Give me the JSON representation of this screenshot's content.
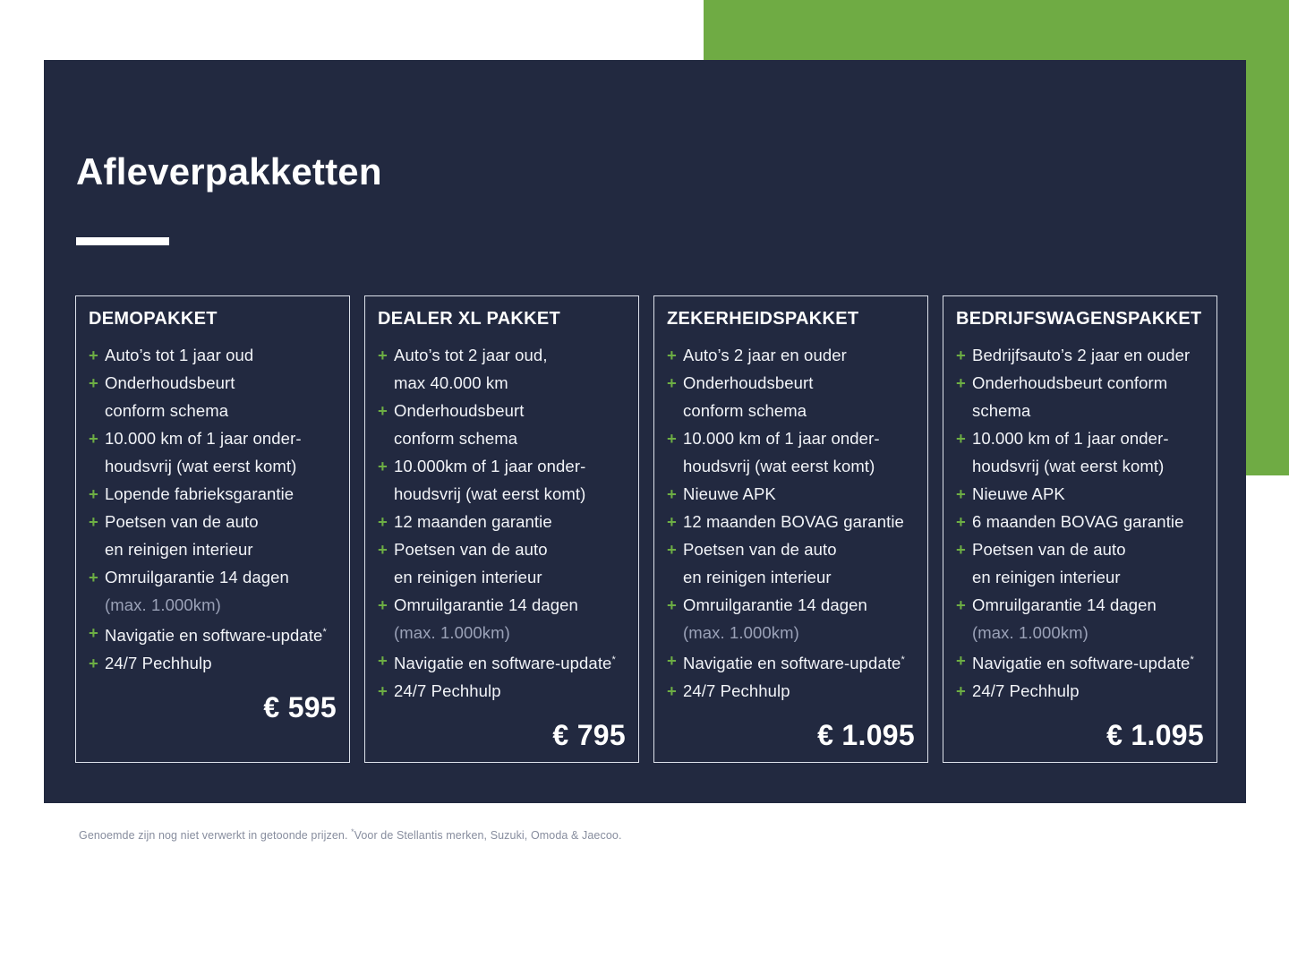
{
  "page": {
    "title": "Afleverpakketten",
    "footnote": {
      "part1": "Genoemde zijn nog niet verwerkt in getoonde prijzen. ",
      "asterisk": "*",
      "part2": "Voor de Stellantis merken, Suzuki, Omoda & Jaecoo."
    },
    "colors": {
      "navy": "#222940",
      "green": "#6FAB44",
      "plus_green": "#6DAE44",
      "text": "#F2F4F8",
      "dim_text": "#9AA1B7",
      "card_border": "#DDE1EA",
      "footnote_gray": "#878D9E"
    }
  },
  "packages": [
    {
      "name": "DEMOPAKKET",
      "price": "€ 595",
      "items": [
        {
          "lines": [
            {
              "text": "Auto’s tot 1 jaar oud"
            }
          ]
        },
        {
          "lines": [
            {
              "text": "Onderhoudsbeurt"
            },
            {
              "text": "conform schema"
            }
          ]
        },
        {
          "lines": [
            {
              "text": "10.000 km of 1 jaar onder-"
            },
            {
              "text": "houdsvrij (wat eerst komt)"
            }
          ]
        },
        {
          "lines": [
            {
              "text": "Lopende fabrieksgarantie"
            }
          ]
        },
        {
          "lines": [
            {
              "text": "Poetsen van de auto"
            },
            {
              "text": "en reinigen interieur"
            }
          ]
        },
        {
          "lines": [
            {
              "text": "Omruilgarantie 14 dagen"
            },
            {
              "text": "(max. 1.000km)",
              "dim": true
            }
          ]
        },
        {
          "lines": [
            {
              "text": "Navigatie en software-update",
              "sup": "*"
            }
          ]
        },
        {
          "lines": [
            {
              "text": "24/7 Pechhulp"
            }
          ]
        }
      ]
    },
    {
      "name": "DEALER XL PAKKET",
      "price": "€ 795",
      "items": [
        {
          "lines": [
            {
              "text": "Auto’s tot 2 jaar oud,"
            },
            {
              "text": "max 40.000 km"
            }
          ]
        },
        {
          "lines": [
            {
              "text": "Onderhoudsbeurt"
            },
            {
              "text": "conform schema"
            }
          ]
        },
        {
          "lines": [
            {
              "text": "10.000km of 1 jaar onder-"
            },
            {
              "text": "houdsvrij (wat eerst komt)"
            }
          ]
        },
        {
          "lines": [
            {
              "text": "12 maanden garantie"
            }
          ]
        },
        {
          "lines": [
            {
              "text": "Poetsen van de auto"
            },
            {
              "text": "en reinigen interieur"
            }
          ]
        },
        {
          "lines": [
            {
              "text": "Omruilgarantie 14 dagen"
            },
            {
              "text": "(max. 1.000km)",
              "dim": true
            }
          ]
        },
        {
          "lines": [
            {
              "text": "Navigatie en software-update",
              "sup": "*"
            }
          ]
        },
        {
          "lines": [
            {
              "text": "24/7 Pechhulp"
            }
          ]
        }
      ]
    },
    {
      "name": "ZEKERHEIDSPAKKET",
      "price": "€ 1.095",
      "items": [
        {
          "lines": [
            {
              "text": "Auto’s 2 jaar en ouder"
            }
          ]
        },
        {
          "lines": [
            {
              "text": "Onderhoudsbeurt"
            },
            {
              "text": "conform schema"
            }
          ]
        },
        {
          "lines": [
            {
              "text": "10.000 km of 1 jaar onder-"
            },
            {
              "text": "houdsvrij (wat eerst komt)"
            }
          ]
        },
        {
          "lines": [
            {
              "text": "Nieuwe APK"
            }
          ]
        },
        {
          "lines": [
            {
              "text": "12 maanden BOVAG garantie"
            }
          ]
        },
        {
          "lines": [
            {
              "text": "Poetsen van de auto"
            },
            {
              "text": "en reinigen interieur"
            }
          ]
        },
        {
          "lines": [
            {
              "text": "Omruilgarantie 14 dagen"
            },
            {
              "text": "(max. 1.000km)",
              "dim": true
            }
          ]
        },
        {
          "lines": [
            {
              "text": "Navigatie en software-update",
              "sup": "*"
            }
          ]
        },
        {
          "lines": [
            {
              "text": "24/7 Pechhulp"
            }
          ]
        }
      ]
    },
    {
      "name": "BEDRIJFSWAGENSPAKKET",
      "price": "€ 1.095",
      "items": [
        {
          "lines": [
            {
              "text": "Bedrijfsauto’s 2 jaar en ouder"
            }
          ]
        },
        {
          "lines": [
            {
              "text": "Onderhoudsbeurt conform"
            },
            {
              "text": "schema"
            }
          ]
        },
        {
          "lines": [
            {
              "text": "10.000 km of 1 jaar onder-"
            },
            {
              "text": "houdsvrij (wat eerst komt)"
            }
          ]
        },
        {
          "lines": [
            {
              "text": "Nieuwe APK"
            }
          ]
        },
        {
          "lines": [
            {
              "text": "6 maanden BOVAG garantie"
            }
          ]
        },
        {
          "lines": [
            {
              "text": "Poetsen van de auto"
            },
            {
              "text": "en reinigen interieur"
            }
          ]
        },
        {
          "lines": [
            {
              "text": "Omruilgarantie 14 dagen"
            },
            {
              "text": "(max. 1.000km)",
              "dim": true
            }
          ]
        },
        {
          "lines": [
            {
              "text": "Navigatie en software-update",
              "sup": "*"
            }
          ]
        },
        {
          "lines": [
            {
              "text": "24/7 Pechhulp"
            }
          ]
        }
      ]
    }
  ]
}
